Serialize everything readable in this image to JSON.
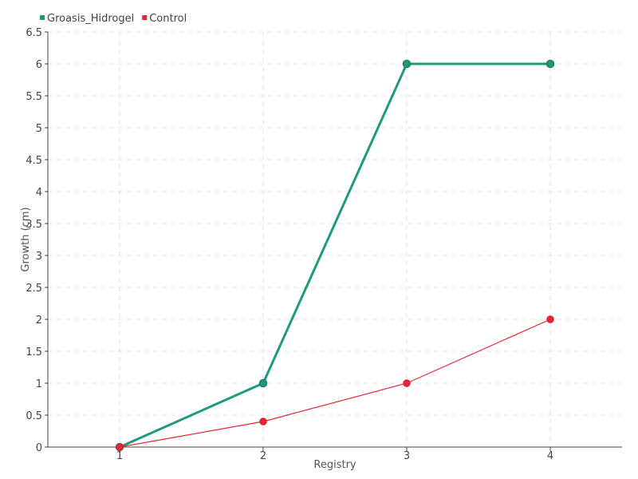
{
  "chart_data": {
    "type": "line",
    "categories": [
      "1",
      "2",
      "3",
      "4"
    ],
    "series": [
      {
        "name": "Groasis_Hidrogel",
        "values": [
          0,
          1,
          6,
          6
        ],
        "color": "#1f9a7d",
        "marker_color": "#1f7f66"
      },
      {
        "name": "Control",
        "values": [
          0,
          0.4,
          1,
          2
        ],
        "color": "#e8263a",
        "marker_color": "#e01e30"
      }
    ],
    "xlabel": "Registry",
    "ylabel": "Growth (cm)",
    "ylim": [
      0,
      6.5
    ],
    "yticks": [
      "0",
      "0.5",
      "1",
      "1.5",
      "2",
      "2.5",
      "3",
      "3.5",
      "4",
      "4.5",
      "5",
      "5.5",
      "6",
      "6.5"
    ],
    "grid": true,
    "legend_position": "top-left"
  }
}
